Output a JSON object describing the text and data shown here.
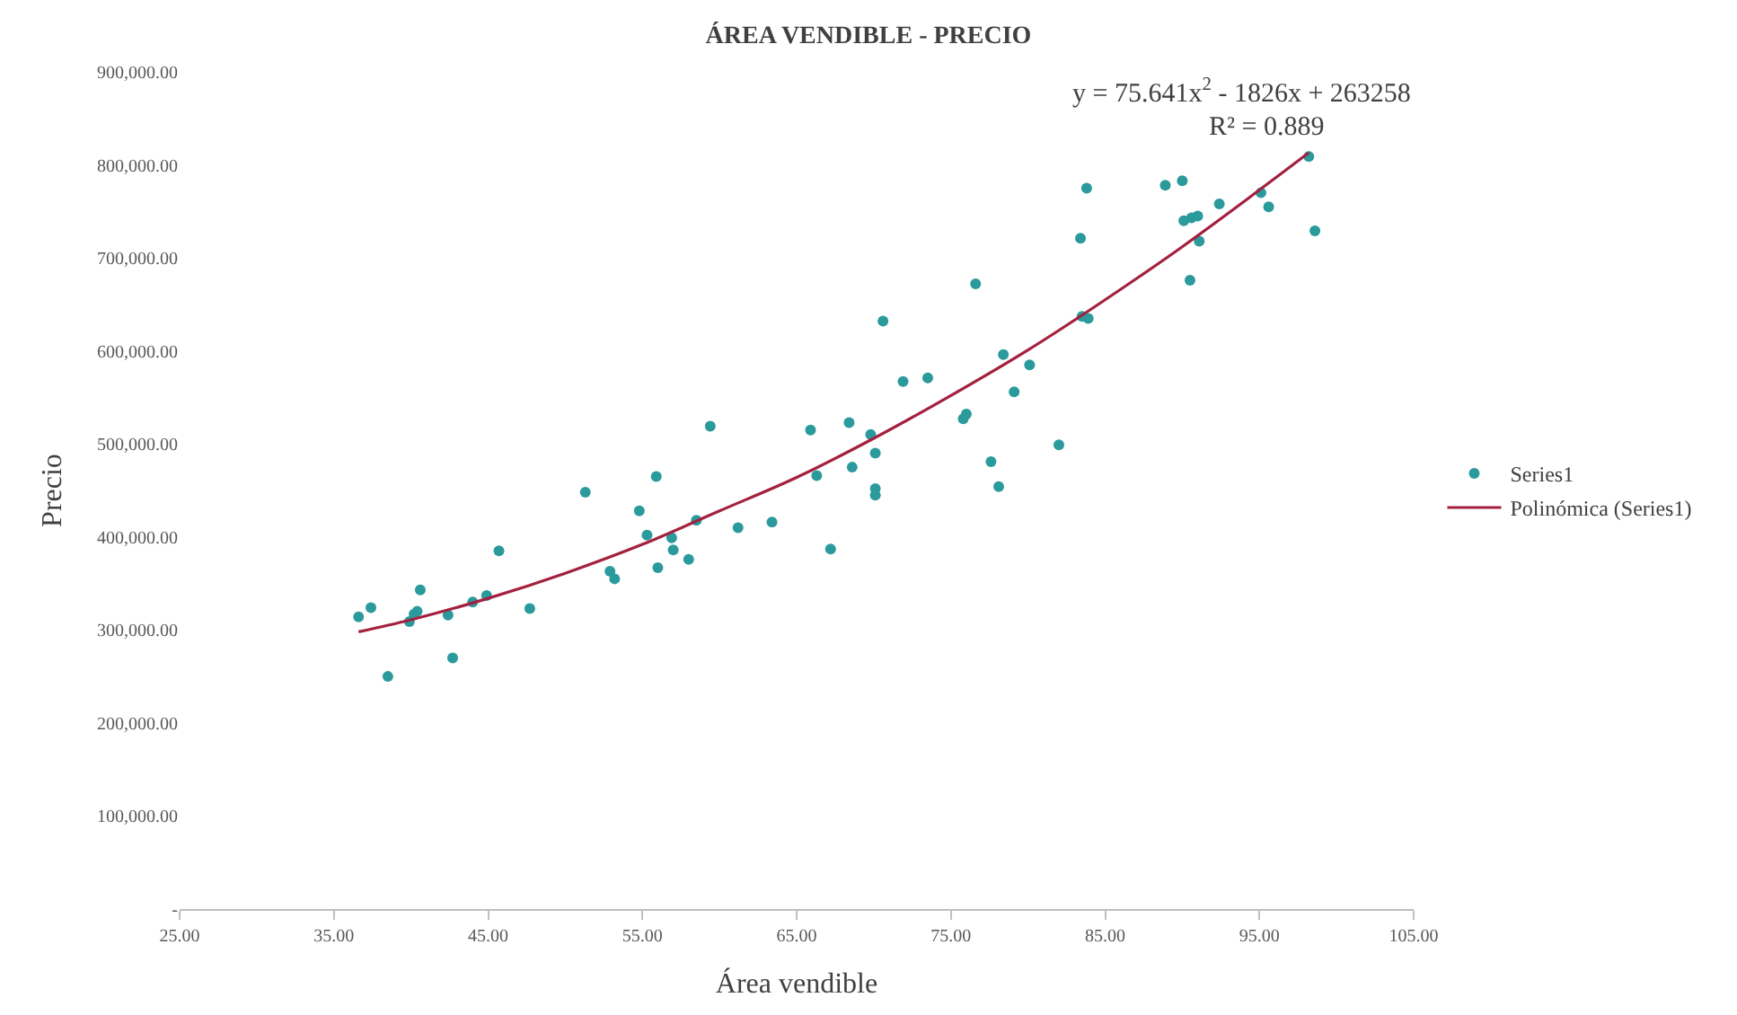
{
  "chart_data": {
    "type": "scatter",
    "title": "ÁREA VENDIBLE - PRECIO",
    "xlabel": "Área vendible",
    "ylabel": "Precio",
    "xlim": [
      25,
      105
    ],
    "xticks": [
      {
        "value": 25,
        "label": "25.00"
      },
      {
        "value": 35,
        "label": "35.00"
      },
      {
        "value": 45,
        "label": "45.00"
      },
      {
        "value": 55,
        "label": "55.00"
      },
      {
        "value": 65,
        "label": "65.00"
      },
      {
        "value": 75,
        "label": "75.00"
      },
      {
        "value": 85,
        "label": "85.00"
      },
      {
        "value": 95,
        "label": "95.00"
      },
      {
        "value": 105,
        "label": "105.00"
      }
    ],
    "ylim": [
      0,
      900000
    ],
    "yticks": [
      {
        "value": 0,
        "label": "-"
      },
      {
        "value": 100000,
        "label": "100,000.00"
      },
      {
        "value": 200000,
        "label": "200,000.00"
      },
      {
        "value": 300000,
        "label": "300,000.00"
      },
      {
        "value": 400000,
        "label": "400,000.00"
      },
      {
        "value": 500000,
        "label": "500,000.00"
      },
      {
        "value": 600000,
        "label": "600,000.00"
      },
      {
        "value": 700000,
        "label": "700,000.00"
      },
      {
        "value": 800000,
        "label": "800,000.00"
      },
      {
        "value": 900000,
        "label": "900,000.00"
      }
    ],
    "grid": false,
    "legend": "right",
    "annotations": [
      "y = 75.641x$^{2}$ - 1826x + 263258",
      "R² = 0.889"
    ],
    "series": [
      {
        "name": "Series1",
        "marker": "circle",
        "color": "#2a9a9c",
        "x": [
          36.6,
          37.4,
          38.5,
          39.9,
          40.2,
          40.4,
          40.6,
          42.4,
          42.7,
          44.0,
          44.9,
          45.7,
          47.7,
          51.3,
          52.9,
          53.2,
          54.8,
          55.3,
          55.9,
          56.0,
          56.9,
          57.0,
          58.0,
          58.5,
          59.4,
          61.2,
          63.4,
          65.9,
          66.3,
          67.2,
          68.4,
          68.6,
          69.8,
          70.1,
          70.1,
          70.1,
          70.6,
          71.9,
          73.5,
          75.8,
          76.0,
          76.6,
          77.6,
          78.1,
          78.4,
          79.1,
          80.1,
          82.0,
          83.4,
          83.5,
          83.8,
          83.9,
          88.9,
          90.0,
          90.1,
          90.5,
          90.6,
          91.0,
          91.1,
          92.4,
          95.1,
          95.6,
          98.2,
          98.6
        ],
        "values": [
          314000,
          324000,
          250000,
          309000,
          317000,
          320000,
          343000,
          316000,
          270000,
          330000,
          337000,
          385000,
          323000,
          448000,
          363000,
          355000,
          428000,
          402000,
          465000,
          367000,
          399000,
          386000,
          376000,
          418000,
          519000,
          410000,
          416000,
          515000,
          466000,
          387000,
          523000,
          475000,
          510000,
          490000,
          452000,
          445000,
          632000,
          567000,
          571000,
          527000,
          532000,
          672000,
          481000,
          454000,
          596000,
          556000,
          585000,
          499000,
          721000,
          637000,
          775000,
          635000,
          778000,
          783000,
          740000,
          676000,
          743000,
          745000,
          718000,
          758000,
          770000,
          755000,
          809000,
          729000
        ]
      },
      {
        "name": "Polinómica (Series1)",
        "type": "line",
        "marker": "none",
        "line_style": "solid",
        "color": "#a3213f",
        "x": [
          36.6,
          40,
          45,
          50,
          55,
          60,
          65,
          70,
          75,
          80,
          85,
          90,
          95,
          98.2
        ],
        "values": [
          298000,
          311000,
          334000,
          361000,
          392000,
          428000,
          464000,
          506000,
          552000,
          601000,
          655000,
          712000,
          773000,
          813000
        ]
      }
    ]
  }
}
